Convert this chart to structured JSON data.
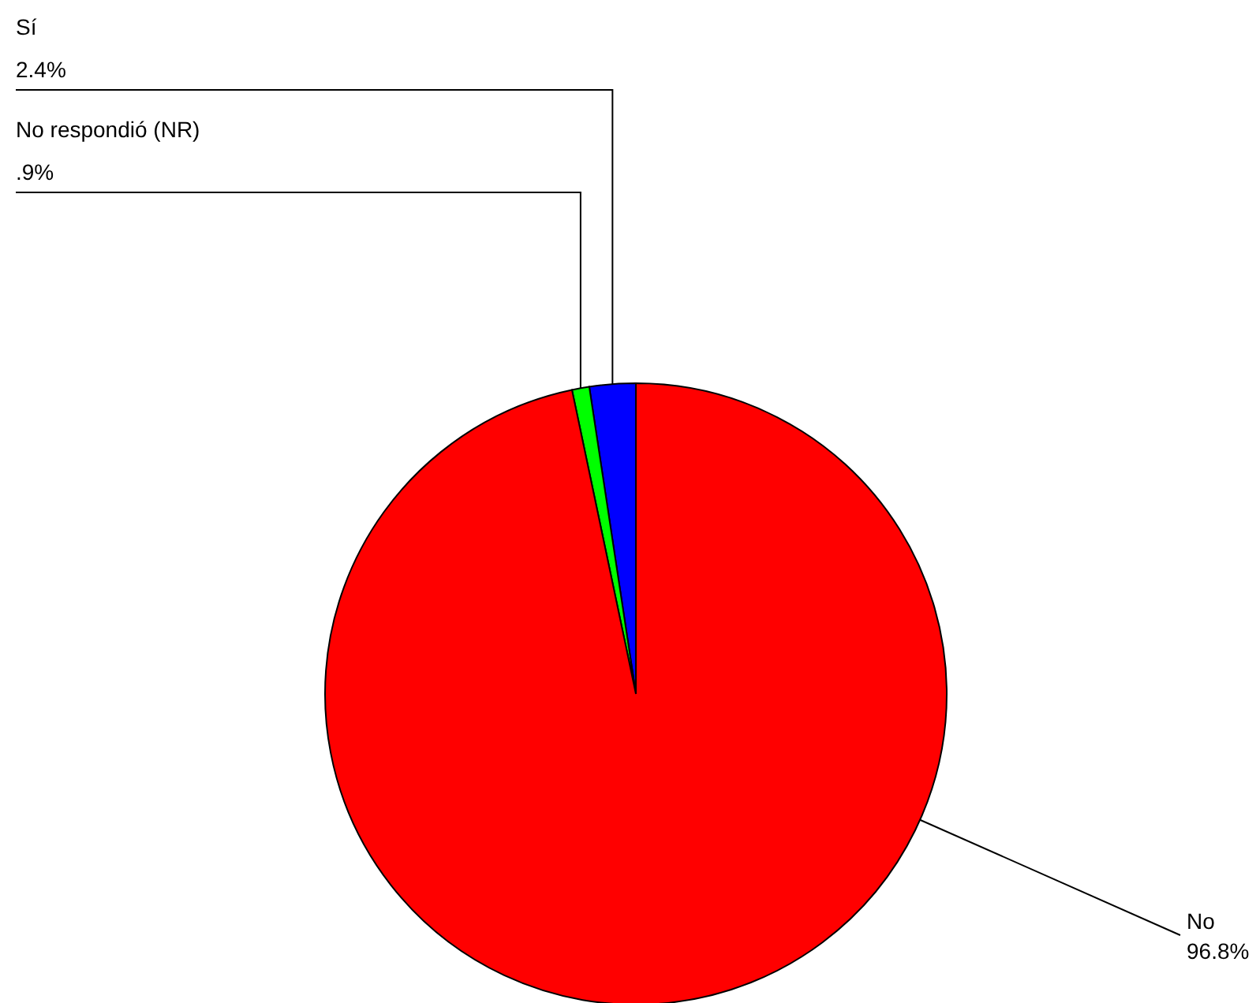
{
  "chart_data": {
    "type": "pie",
    "categories": [
      "Sí",
      "No respondió (NR)",
      "No"
    ],
    "values": [
      2.4,
      0.9,
      96.8
    ],
    "colors": [
      "#0000ff",
      "#00ff00",
      "#ff0000"
    ],
    "value_labels": [
      "2.4%",
      ".9%",
      "96.8%"
    ]
  }
}
